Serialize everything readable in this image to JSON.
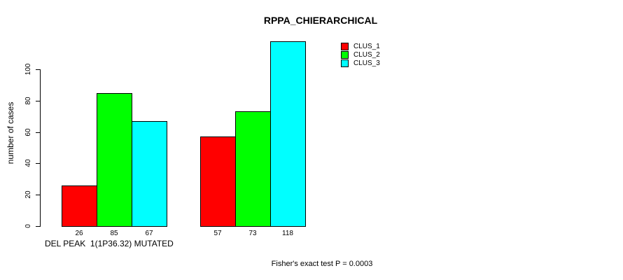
{
  "chart_data": {
    "type": "bar",
    "title": "RPPA_CHIERARCHICAL",
    "ylabel": "number of cases",
    "xlabel": "DEL PEAK  1(1P36.32) MUTATED",
    "ylim": [
      0,
      100
    ],
    "yticks": [
      0,
      20,
      40,
      60,
      80,
      100
    ],
    "grid": false,
    "legend_position": "top-right",
    "series": [
      {
        "name": "CLUS_1",
        "color": "#ff0000",
        "values": [
          26,
          57
        ]
      },
      {
        "name": "CLUS_2",
        "color": "#00ff00",
        "values": [
          85,
          73
        ]
      },
      {
        "name": "CLUS_3",
        "color": "#00ffff",
        "values": [
          67,
          118
        ]
      }
    ],
    "bar_value_labels": [
      [
        26,
        85,
        67
      ],
      [
        57,
        73,
        118
      ]
    ],
    "annotation": "Fisher's exact test P = 0.0003"
  }
}
